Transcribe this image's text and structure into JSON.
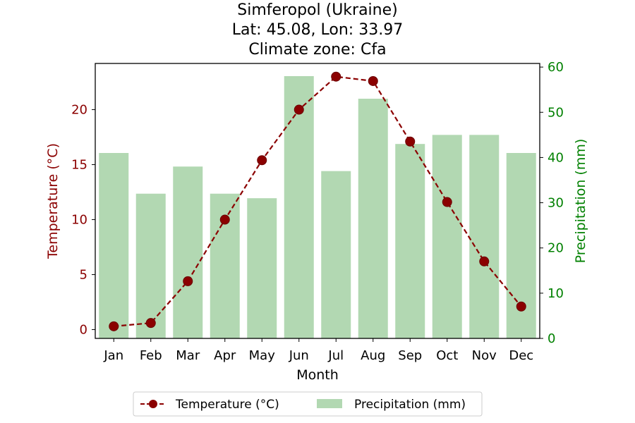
{
  "chart_data": {
    "type": "bar+line",
    "title_lines": [
      "Simferopol (Ukraine)",
      "Lat: 45.08, Lon: 33.97",
      "Climate zone: Cfa"
    ],
    "xlabel": "Month",
    "categories": [
      "Jan",
      "Feb",
      "Mar",
      "Apr",
      "May",
      "Jun",
      "Jul",
      "Aug",
      "Sep",
      "Oct",
      "Nov",
      "Dec"
    ],
    "temperature": {
      "name": "Temperature (°C)",
      "axis_label": "Temperature (°C)",
      "values": [
        0.3,
        0.6,
        4.4,
        10.0,
        15.4,
        20.0,
        23.0,
        22.6,
        17.1,
        11.6,
        6.2,
        2.1
      ],
      "ylim": [
        -0.8,
        24.2
      ],
      "ticks": [
        0,
        5,
        10,
        15,
        20
      ],
      "color": "#8b0000"
    },
    "precipitation": {
      "name": "Precipitation (mm)",
      "axis_label": "Precipitation (mm)",
      "values": [
        41,
        32,
        38,
        32,
        31,
        58,
        37,
        53,
        43,
        45,
        45,
        41
      ],
      "ylim": [
        0,
        60.8
      ],
      "ticks": [
        0,
        10,
        20,
        30,
        40,
        50,
        60
      ],
      "color": "#b2d8b2",
      "axis_color": "#008000"
    },
    "legend_placement": "bottom-center",
    "grid": false
  }
}
